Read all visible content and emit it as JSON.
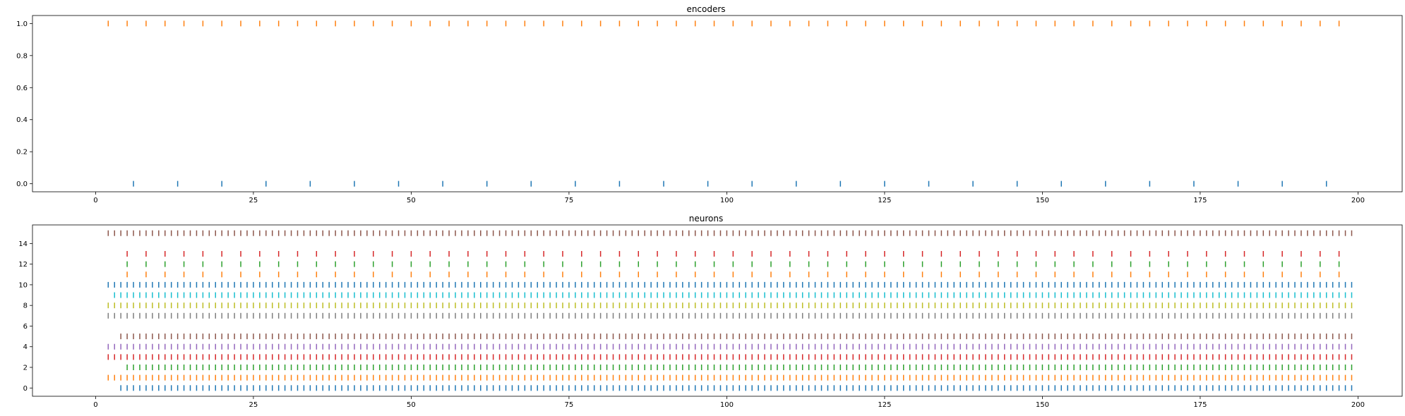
{
  "chart_data": [
    {
      "type": "scatter",
      "subtype": "eventplot",
      "title": "encoders",
      "xlabel": "",
      "ylabel": "",
      "xlim": [
        -10,
        207
      ],
      "ylim": [
        -0.05,
        1.05
      ],
      "xticks": [
        0,
        25,
        50,
        75,
        100,
        125,
        150,
        175,
        200
      ],
      "yticks": [
        0.0,
        0.2,
        0.4,
        0.6,
        0.8,
        1.0
      ],
      "ytick_labels": [
        "0.0",
        "0.2",
        "0.4",
        "0.6",
        "0.8",
        "1.0"
      ],
      "grid": false,
      "series": [
        {
          "row": 0,
          "color": "#1f77b4",
          "start": 6,
          "step": 7,
          "end": 195
        },
        {
          "row": 1,
          "color": "#ff7f0e",
          "start": 2,
          "step": 3,
          "end": 197
        }
      ]
    },
    {
      "type": "scatter",
      "subtype": "eventplot",
      "title": "neurons",
      "xlabel": "",
      "ylabel": "",
      "xlim": [
        -10,
        207
      ],
      "ylim": [
        -0.8,
        15.8
      ],
      "xticks": [
        0,
        25,
        50,
        75,
        100,
        125,
        150,
        175,
        200
      ],
      "yticks": [
        0,
        2,
        4,
        6,
        8,
        10,
        12,
        14
      ],
      "ytick_labels": [
        "0",
        "2",
        "4",
        "6",
        "8",
        "10",
        "12",
        "14"
      ],
      "grid": false,
      "series": [
        {
          "row": 0,
          "color": "#1f77b4",
          "start": 4,
          "step": 1,
          "end": 199
        },
        {
          "row": 1,
          "color": "#ff7f0e",
          "start": 2,
          "step": 1,
          "end": 199
        },
        {
          "row": 2,
          "color": "#2ca02c",
          "start": 5,
          "step": 1,
          "end": 199
        },
        {
          "row": 3,
          "color": "#d62728",
          "start": 2,
          "step": 1,
          "end": 199
        },
        {
          "row": 4,
          "color": "#9467bd",
          "start": 2,
          "step": 1,
          "end": 199
        },
        {
          "row": 5,
          "color": "#8c564b",
          "start": 4,
          "step": 1,
          "end": 199
        },
        {
          "row": 7,
          "color": "#7f7f7f",
          "start": 2,
          "step": 1,
          "end": 199
        },
        {
          "row": 8,
          "color": "#bcbd22",
          "start": 2,
          "step": 1,
          "end": 199
        },
        {
          "row": 9,
          "color": "#17becf",
          "start": 3,
          "step": 1,
          "end": 199
        },
        {
          "row": 10,
          "color": "#1f77b4",
          "start": 2,
          "step": 1,
          "end": 199
        },
        {
          "row": 11,
          "color": "#ff7f0e",
          "start": 5,
          "step": 3,
          "end": 199
        },
        {
          "row": 12,
          "color": "#2ca02c",
          "start": 5,
          "step": 3,
          "end": 199
        },
        {
          "row": 13,
          "color": "#d62728",
          "start": 5,
          "step": 3,
          "end": 199
        },
        {
          "row": 15,
          "color": "#8c564b",
          "start": 2,
          "step": 1,
          "end": 199
        }
      ]
    }
  ]
}
